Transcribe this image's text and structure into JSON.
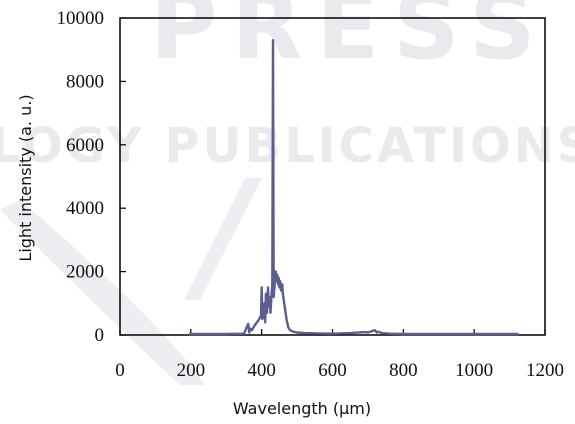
{
  "watermark": {
    "line1": "PRESS",
    "line2": "LOGY PUBLICATIONS"
  },
  "chart_data": {
    "type": "line",
    "title": "",
    "xlabel": "Wavelength (µm)",
    "ylabel": "Light intensity (a. u.)",
    "xlim": [
      0,
      1200
    ],
    "ylim": [
      0,
      10000
    ],
    "xticks": [
      0,
      200,
      400,
      600,
      800,
      1000,
      1200
    ],
    "yticks": [
      0,
      2000,
      4000,
      6000,
      8000,
      10000
    ],
    "grid": false,
    "legend": "none",
    "series": [
      {
        "color": "#5a5e8e",
        "x": [
          195,
          300,
          350,
          362,
          365,
          368,
          372,
          380,
          390,
          398,
          400,
          402,
          405,
          408,
          410,
          412,
          415,
          418,
          420,
          422,
          425,
          428,
          430,
          432,
          434,
          436,
          438,
          440,
          442,
          444,
          446,
          448,
          450,
          452,
          455,
          458,
          460,
          465,
          470,
          475,
          480,
          490,
          500,
          520,
          560,
          600,
          650,
          690,
          700,
          710,
          720,
          725,
          730,
          740,
          760,
          800,
          850,
          900,
          950,
          1000,
          1050,
          1100,
          1125
        ],
        "y": [
          30,
          30,
          40,
          350,
          80,
          200,
          150,
          300,
          450,
          600,
          1500,
          500,
          700,
          1000,
          400,
          1300,
          700,
          1500,
          900,
          1200,
          700,
          1300,
          1600,
          9300,
          1200,
          1500,
          1800,
          2000,
          1700,
          1900,
          1600,
          1800,
          1500,
          1700,
          1400,
          1600,
          1300,
          900,
          500,
          250,
          150,
          100,
          80,
          60,
          50,
          40,
          60,
          90,
          80,
          120,
          150,
          80,
          100,
          60,
          40,
          30,
          30,
          30,
          30,
          30,
          30,
          30,
          30
        ]
      }
    ]
  }
}
